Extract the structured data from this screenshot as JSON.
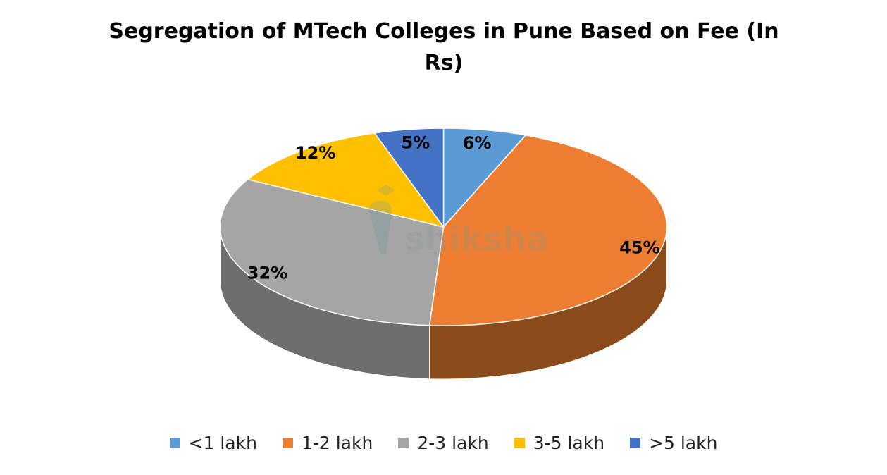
{
  "chart_data": {
    "type": "pie",
    "title": "Segregation of MTech Colleges in Pune Based on Fee (In Rs)",
    "three_d": true,
    "categories": [
      "<1 lakh",
      "1-2 lakh",
      "2-3 lakh",
      "3-5 lakh",
      ">5 lakh"
    ],
    "values": [
      6,
      45,
      32,
      12,
      5
    ],
    "value_labels": [
      "6%",
      "45%",
      "32%",
      "12%",
      "5%"
    ],
    "colors": [
      "#5B9BD5",
      "#ED7D31",
      "#A5A5A5",
      "#FFC000",
      "#4472C4"
    ],
    "side_colors": [
      "#3A6F9F",
      "#8A4A1A",
      "#6E6E6E",
      "#A37A00",
      "#2E4E86"
    ],
    "legend_position": "bottom"
  },
  "watermark": {
    "text": "shiksha",
    "icon": "shiksha-logo-icon"
  }
}
